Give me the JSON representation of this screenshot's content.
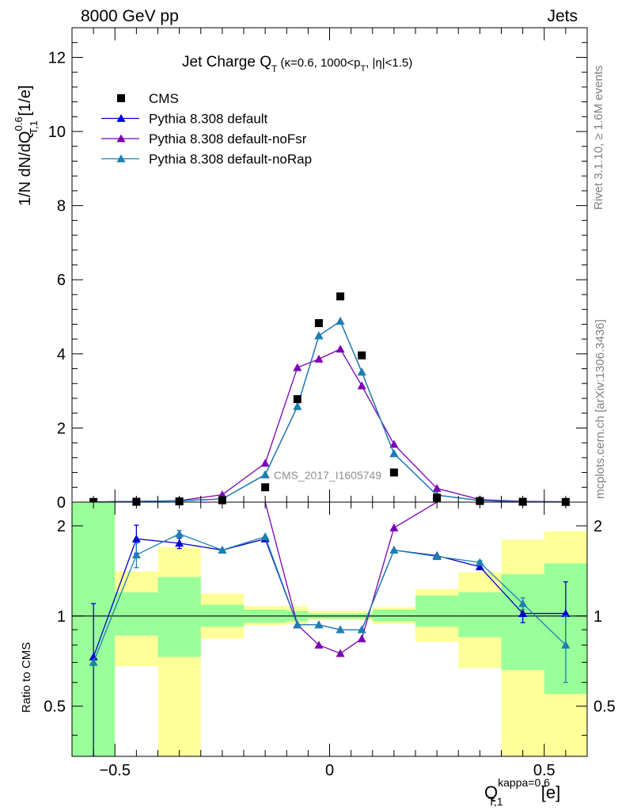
{
  "header": {
    "left": "8000 GeV pp",
    "right": "Jets"
  },
  "side_labels": {
    "top": "Rivet 3.1.10, ≥ 1.6M events",
    "bottom": "mcplots.cern.ch [arXiv:1306.3436]"
  },
  "watermark": "CMS_2017_I1605749",
  "chart_data": [
    {
      "type": "scatter",
      "panel": "main",
      "title": "Jet Charge Q_T (κ=0.6, 1000<p_T, |η|<1.5)",
      "title_main": "Jet Charge Q",
      "title_sub": "T",
      "title_rest": " (κ=0.6, 1000<p",
      "title_sub2": "T",
      "title_end": ", |η|<1.5)",
      "ylabel": "1/N dN/dQ_{T,1}^{0.6} [1/e]",
      "ylabel_parts": {
        "a": "1/N dN/dQ",
        "sup": "0.6",
        "sub": "T,1",
        "b": " [1/e]"
      },
      "xlim": [
        -0.6,
        0.6
      ],
      "ylim": [
        0,
        12.8
      ],
      "yticks": [
        0,
        2,
        4,
        6,
        8,
        10,
        12
      ],
      "ytick_labels": [
        "0",
        "2",
        "4",
        "6",
        "8",
        "10",
        "12"
      ],
      "legend_position": "top-left",
      "x": [
        -0.55,
        -0.45,
        -0.35,
        -0.25,
        -0.15,
        -0.075,
        -0.025,
        0.025,
        0.075,
        0.15,
        0.25,
        0.35,
        0.45,
        0.55
      ],
      "series": [
        {
          "name": "CMS",
          "color": "#000000",
          "marker": "square",
          "values": [
            0.005,
            0.01,
            0.02,
            0.05,
            0.4,
            2.78,
            4.83,
            5.55,
            3.96,
            0.8,
            0.12,
            0.03,
            0.01,
            0.005
          ]
        },
        {
          "name": "Pythia 8.308 default",
          "color": "#0000cc",
          "marker": "triangle",
          "values": [
            0.004,
            0.018,
            0.035,
            0.085,
            0.74,
            2.58,
            4.49,
            4.88,
            3.51,
            1.31,
            0.19,
            0.043,
            0.01,
            0.005
          ]
        },
        {
          "name": "Pythia 8.308 default-noFsr",
          "color": "#7b00b4",
          "marker": "triangle",
          "values": [
            0.005,
            0.02,
            0.04,
            0.2,
            1.05,
            3.63,
            3.86,
            4.13,
            3.14,
            1.56,
            0.37,
            0.07,
            0.02,
            0.01
          ]
        },
        {
          "name": "Pythia 8.308 default-noRap",
          "color": "#1a80b0",
          "marker": "triangle",
          "values": [
            0.004,
            0.016,
            0.036,
            0.085,
            0.74,
            2.58,
            4.49,
            4.88,
            3.51,
            1.31,
            0.19,
            0.044,
            0.011,
            0.004
          ]
        }
      ]
    },
    {
      "type": "line",
      "panel": "ratio",
      "ylabel": "Ratio to CMS",
      "xlabel": "Q_{T,1}^{kappa=0.6} [e]",
      "xlabel_parts": {
        "a": "Q",
        "sup": "kappa=0.6",
        "sub": "T,1",
        "b": " [e]"
      },
      "xlim": [
        -0.6,
        0.6
      ],
      "ylim": [
        0.34,
        2.4
      ],
      "log_y": true,
      "yticks": [
        0.5,
        1,
        2
      ],
      "ytick_labels": [
        "0.5",
        "1",
        "2"
      ],
      "xticks": [
        -0.5,
        0,
        0.5
      ],
      "xtick_labels": [
        "−0.5",
        "0",
        "0.5"
      ],
      "bins": [
        [
          -0.6,
          -0.5
        ],
        [
          -0.5,
          -0.4
        ],
        [
          -0.4,
          -0.3
        ],
        [
          -0.3,
          -0.2
        ],
        [
          -0.2,
          -0.1
        ],
        [
          -0.1,
          -0.05
        ],
        [
          -0.05,
          0
        ],
        [
          0,
          0.05
        ],
        [
          0.05,
          0.1
        ],
        [
          0.1,
          0.2
        ],
        [
          0.2,
          0.3
        ],
        [
          0.3,
          0.4
        ],
        [
          0.4,
          0.5
        ],
        [
          0.5,
          0.6
        ]
      ],
      "band_green": [
        [
          0.34,
          2.4
        ],
        [
          0.86,
          1.2
        ],
        [
          0.73,
          1.35
        ],
        [
          0.92,
          1.09
        ],
        [
          0.95,
          1.05
        ],
        [
          0.96,
          1.04
        ],
        [
          0.98,
          1.02
        ],
        [
          0.98,
          1.02
        ],
        [
          0.98,
          1.02
        ],
        [
          0.96,
          1.05
        ],
        [
          0.92,
          1.17
        ],
        [
          0.85,
          1.2
        ],
        [
          0.66,
          1.38
        ],
        [
          0.55,
          1.5
        ]
      ],
      "band_yellow": [
        [
          0.34,
          2.4
        ],
        [
          0.68,
          1.41
        ],
        [
          0.34,
          1.7
        ],
        [
          0.84,
          1.19
        ],
        [
          0.93,
          1.08
        ],
        [
          0.94,
          1.08
        ],
        [
          0.97,
          1.04
        ],
        [
          0.97,
          1.04
        ],
        [
          0.97,
          1.04
        ],
        [
          0.94,
          1.07
        ],
        [
          0.82,
          1.23
        ],
        [
          0.67,
          1.4
        ],
        [
          0.34,
          1.8
        ],
        [
          0.34,
          1.92
        ]
      ],
      "x": [
        -0.55,
        -0.45,
        -0.35,
        -0.25,
        -0.15,
        -0.075,
        -0.025,
        0.025,
        0.075,
        0.15,
        0.25,
        0.35,
        0.45,
        0.55
      ],
      "series": [
        {
          "name": "Pythia 8.308 default",
          "color": "#0000cc",
          "values": [
            0.73,
            1.81,
            1.75,
            1.66,
            1.81,
            0.935,
            0.935,
            0.9,
            0.9,
            1.66,
            1.59,
            1.46,
            1.02,
            1.02
          ],
          "errors": [
            [
              0.3,
              1.1
            ],
            [
              1.62,
              2.01
            ],
            [
              1.68,
              1.82
            ],
            null,
            null,
            null,
            null,
            null,
            null,
            null,
            null,
            null,
            [
              0.95,
              1.08
            ],
            [
              0.8,
              1.3
            ]
          ]
        },
        {
          "name": "Pythia 8.308 default-noFsr",
          "color": "#7b00b4",
          "values": [
            null,
            null,
            null,
            null,
            2.6,
            0.935,
            0.8,
            0.75,
            0.84,
            1.97,
            2.9,
            null,
            null,
            null
          ]
        },
        {
          "name": "Pythia 8.308 default-noRap",
          "color": "#1a80b0",
          "values": [
            0.7,
            1.6,
            1.88,
            1.66,
            1.84,
            0.935,
            0.935,
            0.9,
            0.9,
            1.66,
            1.58,
            1.51,
            1.1,
            0.8
          ],
          "errors": [
            null,
            [
              1.45,
              1.75
            ],
            [
              1.84,
              1.93
            ],
            null,
            null,
            null,
            null,
            null,
            null,
            null,
            null,
            [
              1.49,
              1.53
            ],
            [
              1.05,
              1.15
            ],
            [
              0.6,
              1.0
            ]
          ]
        }
      ]
    }
  ]
}
